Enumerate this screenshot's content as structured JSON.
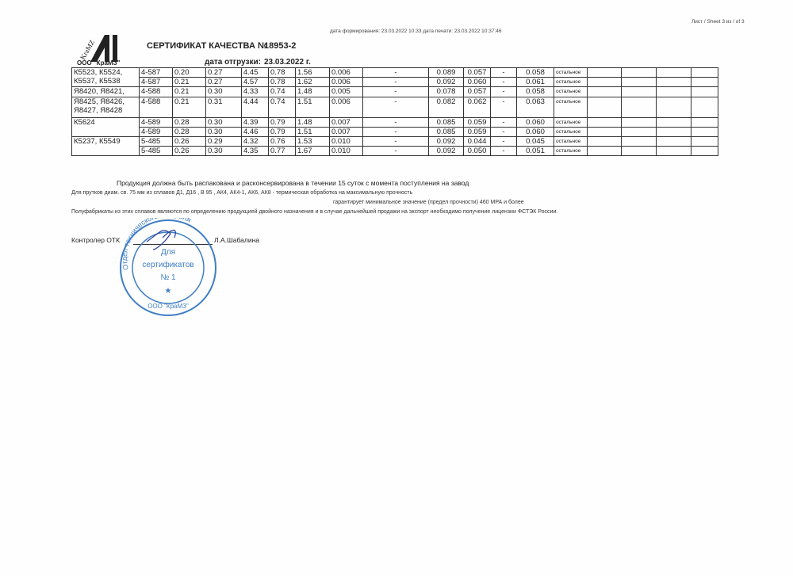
{
  "header": {
    "sheet": "Лист / Sheet  3 из / of  3",
    "dates": "дата формирования: 23.03.2022 10:33  дата печати: 23.03.2022 10:37:46",
    "title": "СЕРТИФИКАТ КАЧЕСТВА №",
    "number": "18953-2",
    "ship_label": "дата отгрузки:",
    "ship_date": "23.03.2022 г.",
    "company": "ООО \"КраМЗ\"",
    "logo_text": "KraMZ"
  },
  "table": {
    "rows": [
      {
        "name": "К5523, К5524,",
        "lot": "4-587",
        "v": [
          "0.20",
          "0.27",
          "4.45",
          "0.78",
          "1.56",
          "0.006",
          "-",
          "0.089",
          "0.057",
          "-",
          "0.058"
        ],
        "base": "остальное"
      },
      {
        "name": "К5537, К5538",
        "lot": "4-587",
        "v": [
          "0.21",
          "0.27",
          "4.57",
          "0.78",
          "1.62",
          "0.006",
          "-",
          "0.092",
          "0.060",
          "-",
          "0.061"
        ],
        "base": "остальное"
      },
      {
        "name": "Я8420, Я8421,",
        "lot": "4-588",
        "v": [
          "0.21",
          "0.30",
          "4.33",
          "0.74",
          "1.48",
          "0.005",
          "-",
          "0.078",
          "0.057",
          "-",
          "0.058"
        ],
        "base": "остальное"
      },
      {
        "name": "Я8425, Я8426,\nЯ8427, Я8428",
        "lot": "4-588",
        "v": [
          "0.21",
          "0.31",
          "4.44",
          "0.74",
          "1.51",
          "0.006",
          "-",
          "0.082",
          "0.062",
          "-",
          "0.063"
        ],
        "base": "остальное"
      },
      {
        "name": "К5624",
        "lot": "4-589",
        "v": [
          "0.28",
          "0.30",
          "4.39",
          "0.79",
          "1.48",
          "0.007",
          "-",
          "0.085",
          "0.059",
          "-",
          "0.060"
        ],
        "base": "остальное"
      },
      {
        "name": "",
        "lot": "4-589",
        "v": [
          "0.28",
          "0.30",
          "4.46",
          "0.79",
          "1.51",
          "0.007",
          "-",
          "0.085",
          "0.059",
          "-",
          "0.060"
        ],
        "base": "остальное"
      },
      {
        "name": "К5237, К5549",
        "lot": "5-485",
        "v": [
          "0.26",
          "0.29",
          "4.32",
          "0.76",
          "1.53",
          "0.010",
          "-",
          "0.092",
          "0.044",
          "-",
          "0.045"
        ],
        "base": "остальное"
      },
      {
        "name": "",
        "lot": "5-485",
        "v": [
          "0.26",
          "0.30",
          "4.35",
          "0.77",
          "1.67",
          "0.010",
          "-",
          "0.092",
          "0.050",
          "-",
          "0.051"
        ],
        "base": "остальное"
      }
    ]
  },
  "notes": {
    "n1": "Продукция должна быть распакована и расконсервирована в течении 15 суток с момента поступления на завод",
    "n2": "Для  прутков   диам. св. 75 мм  из сплавов Д1, Д16 , В 95 , АК4,  АК4-1,  АК6, АК8 -  термическая обработка на максимальную прочность",
    "n3": "гарантирует минимальное значение (предел прочности) 460 МРА и более",
    "n4": "Полуфабрикаты из этих сплавов являются по определению продукцией двойного назначения и в случае дальнейшей продажи  на экспорт необходимо получение  лицензии ФСТЭК России."
  },
  "signature": {
    "label": "Контролер ОТК",
    "name": "Л.А.Шабалина"
  },
  "stamp": {
    "ring": "Отдел технического контроля",
    "center1": "Для",
    "center2": "сертификатов",
    "center3": "№ 1",
    "bottom": "ООО \"КраМЗ\"",
    "color": "#3f7fc4"
  }
}
